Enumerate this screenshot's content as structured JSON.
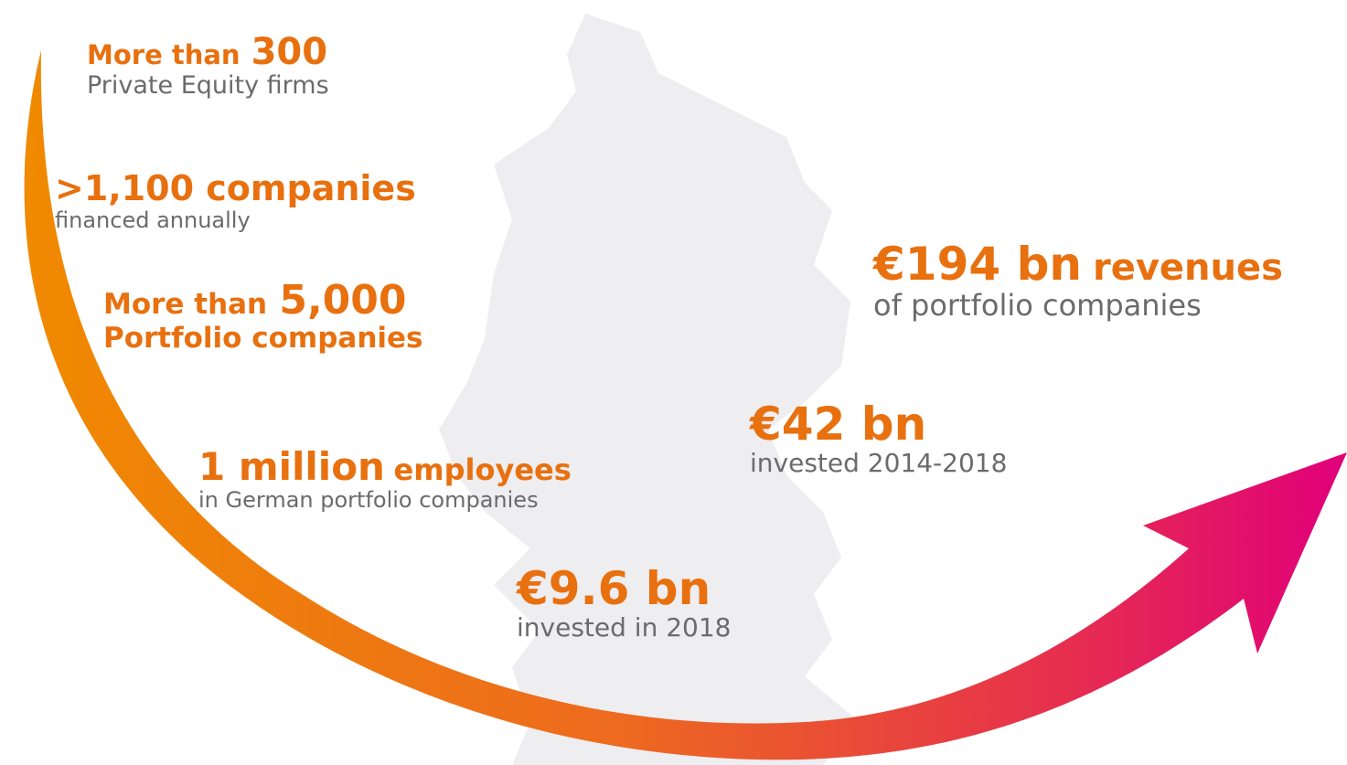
{
  "stats": [
    {
      "parts": [
        "More than",
        "300"
      ],
      "description": "Private Equity firms"
    },
    {
      "parts": [
        ">1,100 companies"
      ],
      "description": "financed annually"
    },
    {
      "parts": [
        "More than",
        "5,000"
      ],
      "description": "Portfolio companies"
    },
    {
      "parts": [
        "1 million",
        "employees"
      ],
      "description": "in German portfolio companies"
    },
    {
      "parts": [
        "€9.6 bn"
      ],
      "description": "invested in 2018"
    },
    {
      "parts": [
        "€42 bn"
      ],
      "description": "invested 2014-2018"
    },
    {
      "parts": [
        "€194 bn",
        "revenues"
      ],
      "description": "of portfolio companies"
    }
  ]
}
